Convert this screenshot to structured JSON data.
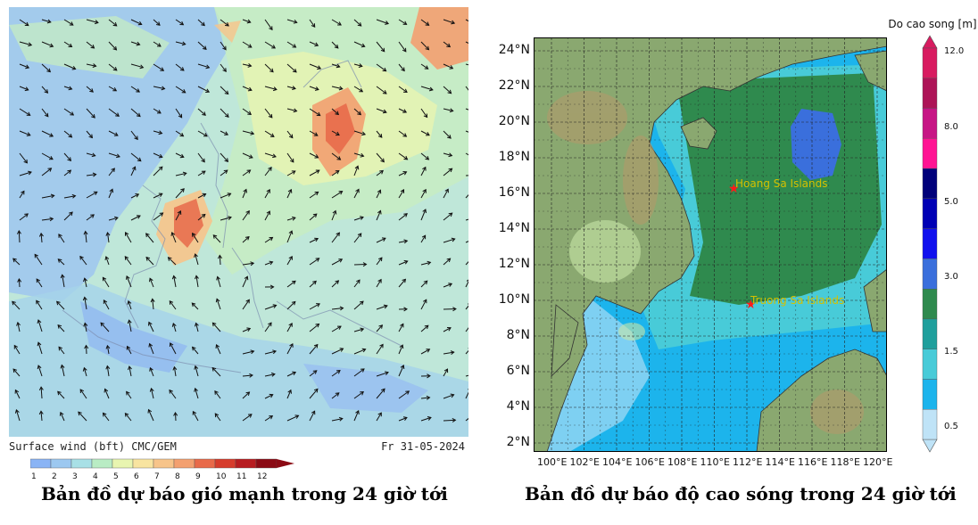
{
  "wind_panel": {
    "footer_left": "Surface wind (bft)  CMC/GEM",
    "footer_right": "Fr 31-05-2024",
    "colorbar": {
      "ticks": [
        "1",
        "2",
        "3",
        "4",
        "5",
        "6",
        "7",
        "8",
        "9",
        "10",
        "11",
        "12"
      ],
      "colors": [
        "#8ab4f5",
        "#9cc8f0",
        "#a8e0e6",
        "#b9ecc4",
        "#e8f5b0",
        "#f8e4a0",
        "#f7c48a",
        "#f3a070",
        "#e86a4a",
        "#d63c2c",
        "#b71c20",
        "#8b0a14"
      ]
    },
    "caption": "Bản đồ dự báo gió mạnh trong 24 giờ tới"
  },
  "wave_panel": {
    "colorbar": {
      "title": "Do cao song [m]",
      "ticks": [
        "0.5",
        "1.5",
        "3.0",
        "5.0",
        "8.0",
        "12.0"
      ],
      "colors": [
        "#bfe3f7",
        "#1cb4ec",
        "#48cbd8",
        "#1f9f9c",
        "#2f8a4e",
        "#3a6fdc",
        "#1010ee",
        "#0000b5",
        "#00007a",
        "#ff1493",
        "#c71585",
        "#ad1457",
        "#d81b60"
      ]
    },
    "lat_labels": [
      "24°N",
      "22°N",
      "20°N",
      "18°N",
      "16°N",
      "14°N",
      "12°N",
      "10°N",
      "8°N",
      "6°N",
      "4°N",
      "2°N"
    ],
    "lon_labels": [
      "100°E",
      "102°E",
      "104°E",
      "106°E",
      "108°E",
      "110°E",
      "112°E",
      "114°E",
      "116°E",
      "118°E",
      "120°E"
    ],
    "markers": [
      {
        "label": "Hoang Sa Islands"
      },
      {
        "label": "Truong Sa Islands"
      }
    ],
    "caption": "Bản đồ dự báo độ cao sóng trong 24 giờ tới"
  },
  "colors": {
    "sea_low": "#1cb4ec",
    "sea_mid": "#48cbd8",
    "sea_high": "#2f8a4e",
    "sea_peak": "#3a6fdc",
    "land": "#8aa870",
    "marker": "#ff1a1a",
    "marker_label": "#d4c000"
  }
}
